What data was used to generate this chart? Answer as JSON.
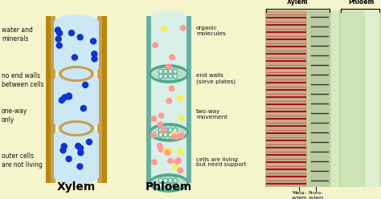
{
  "bg_color": "#f5f5cc",
  "xylem_label": "Xylem",
  "phloem_label": "Phloem",
  "xylem_left_labels": [
    "water and\nminerals",
    "no end walls\nbetween cells",
    "one-way\nonly",
    "outer cells\nare not living"
  ],
  "phloem_right_labels": [
    "organic\nmolecules",
    "end walls\n(sieve plates)",
    "two-way\nmovement",
    "cells are living\nbut need support"
  ],
  "xylem_tube_color": "#cce8f4",
  "xylem_wall_outer_color": "#b8860b",
  "xylem_wall_inner_color": "#c8a050",
  "phloem_tube_color": "#d8f0e8",
  "phloem_wall_color": "#6ab0a0",
  "phloem_outline_color": "#50a090",
  "arrow_red": "#dd0000",
  "arrow_green_up": "#229922",
  "arrow_green_down": "#116611",
  "dot_blue": "#1133cc",
  "dot_pink": "#ff9999",
  "dot_yellow": "#ffee44",
  "sieve_fill": "#b8e0d0",
  "sieve_outline": "#50a888",
  "meta_xylem_label": "Meta-\nxylem",
  "proto_xylem_label": "Proto-\nxylem",
  "micro_xylem_label": "Xylem",
  "micro_phloem_label": "Phloem"
}
